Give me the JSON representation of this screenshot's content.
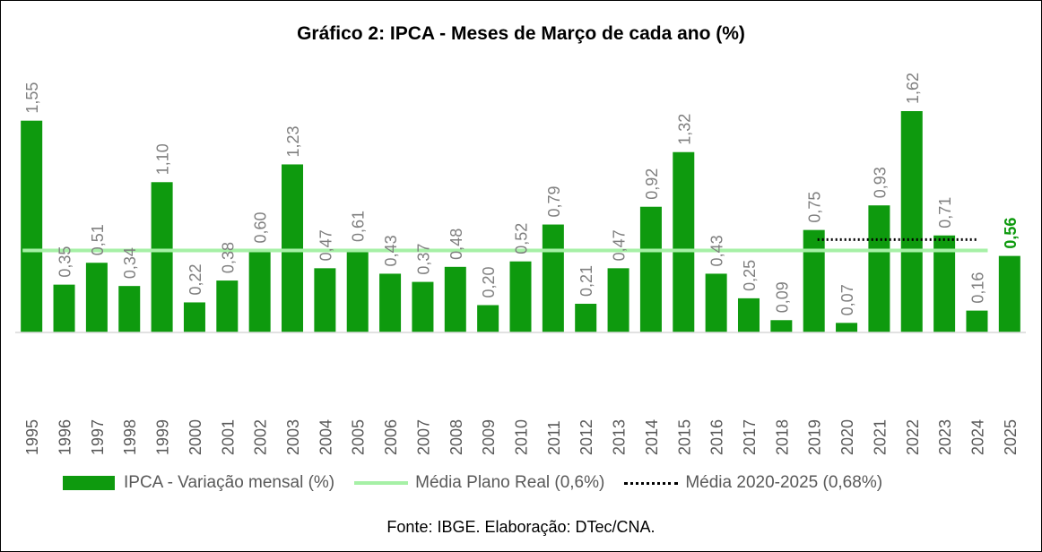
{
  "chart_data": {
    "type": "bar",
    "title": "Gráfico 2: IPCA - Meses de Março de cada ano (%)",
    "categories": [
      "1995",
      "1996",
      "1997",
      "1998",
      "1999",
      "2000",
      "2001",
      "2002",
      "2003",
      "2004",
      "2005",
      "2006",
      "2007",
      "2008",
      "2009",
      "2010",
      "2011",
      "2012",
      "2013",
      "2014",
      "2015",
      "2016",
      "2017",
      "2018",
      "2019",
      "2020",
      "2021",
      "2022",
      "2023",
      "2024",
      "2025"
    ],
    "series": [
      {
        "name": "IPCA - Variação mensal (%)",
        "values": [
          1.55,
          0.35,
          0.51,
          0.34,
          1.1,
          0.22,
          0.38,
          0.6,
          1.23,
          0.47,
          0.61,
          0.43,
          0.37,
          0.48,
          0.2,
          0.52,
          0.79,
          0.21,
          0.47,
          0.92,
          1.32,
          0.43,
          0.25,
          0.09,
          0.75,
          0.07,
          0.93,
          1.62,
          0.71,
          0.16,
          0.56
        ],
        "labels": [
          "1,55",
          "0,35",
          "0,51",
          "0,34",
          "1,10",
          "0,22",
          "0,38",
          "0,60",
          "1,23",
          "0,47",
          "0,61",
          "0,43",
          "0,37",
          "0,48",
          "0,20",
          "0,52",
          "0,79",
          "0,21",
          "0,47",
          "0,92",
          "1,32",
          "0,43",
          "0,25",
          "0,09",
          "0,75",
          "0,07",
          "0,93",
          "1,62",
          "0,71",
          "0,16",
          "0,56"
        ],
        "color": "#0e9a0e"
      }
    ],
    "reference_lines": [
      {
        "name": "Média Plano Real (0,6%)",
        "value": 0.6,
        "from": "1995",
        "to": "2024",
        "color": "#a6f0a6",
        "style": "solid"
      },
      {
        "name": "Média 2020-2025 (0,68%)",
        "value": 0.68,
        "from": "2019",
        "to": "2024",
        "color": "#000000",
        "style": "dotted"
      }
    ],
    "highlight_label_color": "#0e9a0e",
    "label_color": "#7f7f7f",
    "ylim": [
      0,
      1.62
    ],
    "grid": false,
    "legend_position": "bottom"
  },
  "source": "Fonte: IBGE. Elaboração: DTec/CNA."
}
